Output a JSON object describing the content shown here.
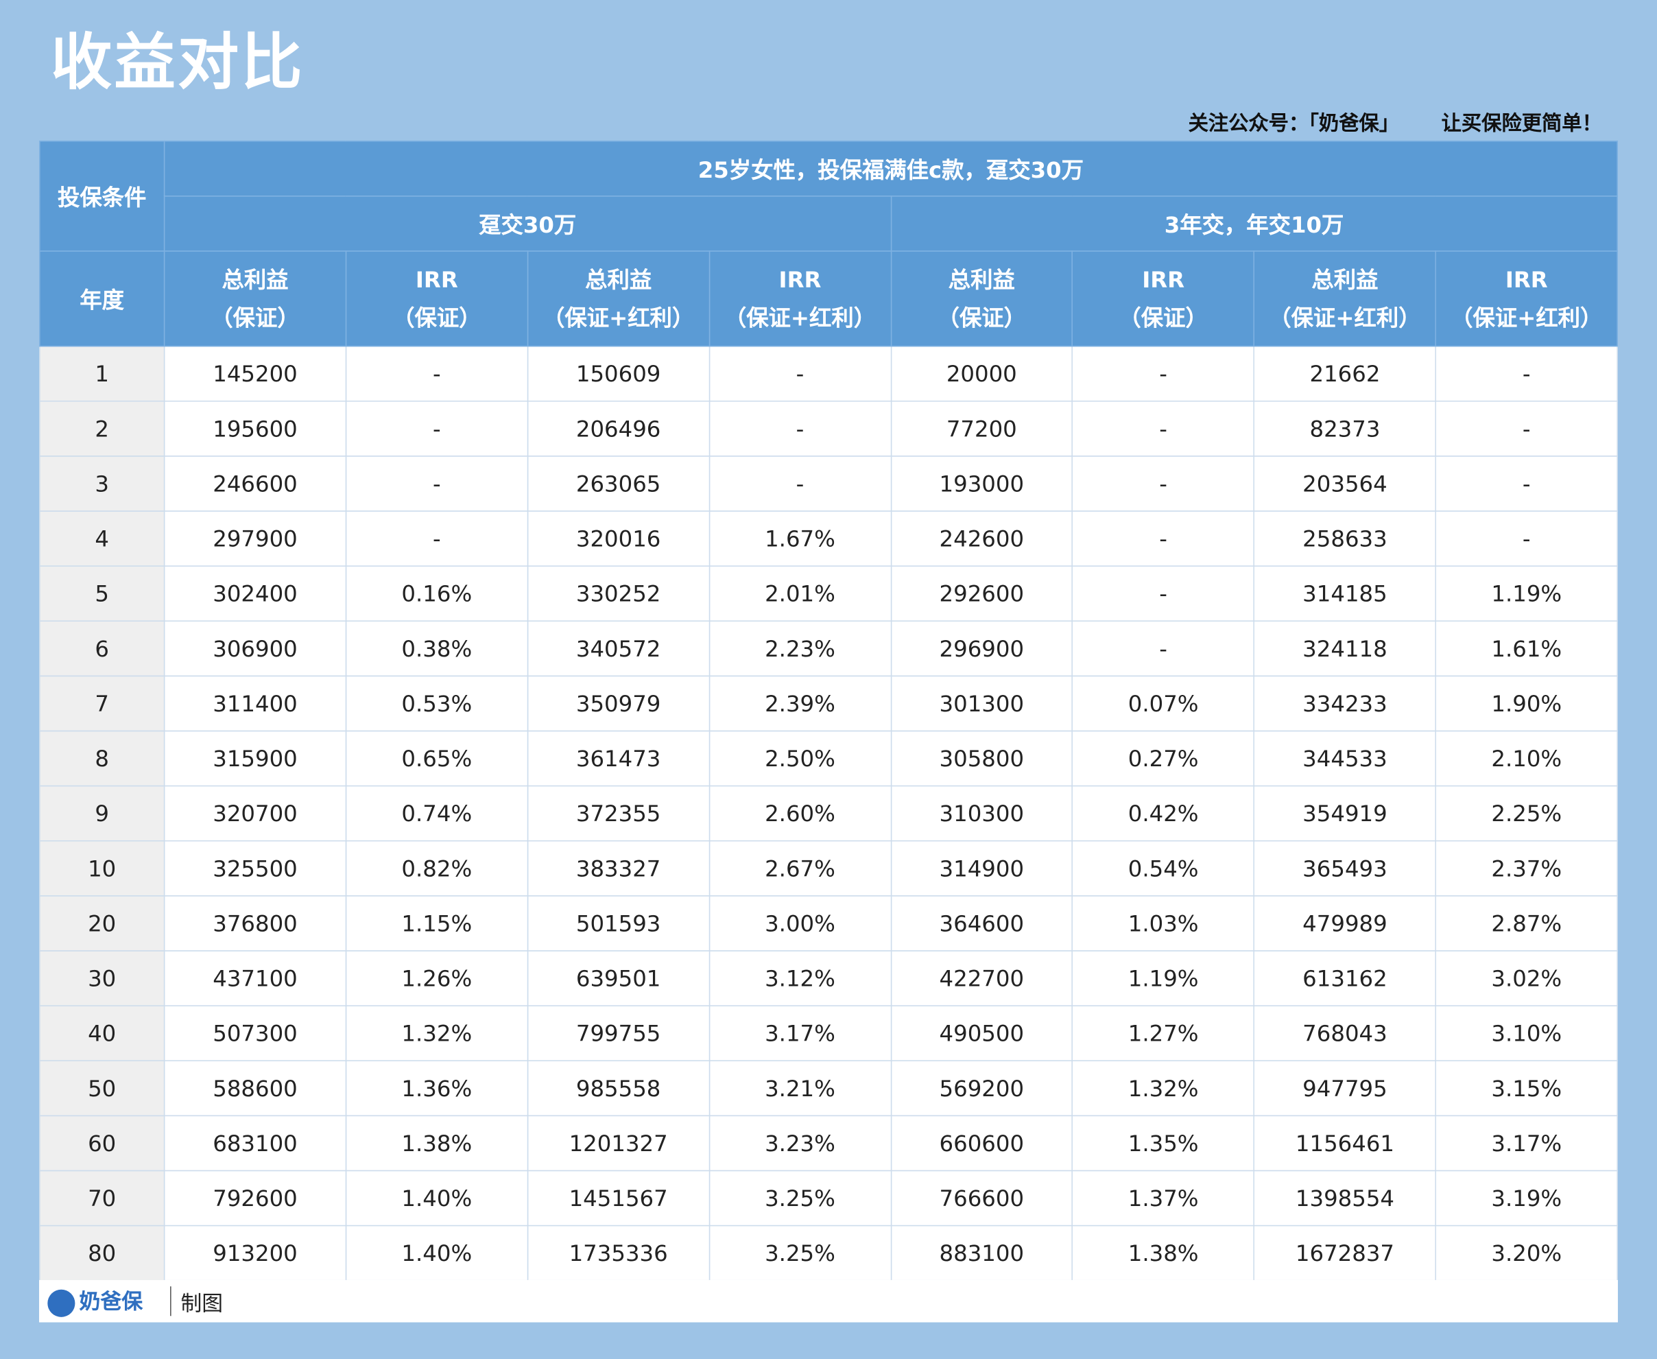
{
  "title": "收益对比",
  "subtitle": "关注公众号：「奶爸保」",
  "slogan": "让买保险更简单！",
  "table": {
    "corner": "投保条件",
    "main_header": "25岁女性，投保福满佳c款，趸交30万",
    "groups": [
      "趸交30万",
      "3年交，年交10万"
    ],
    "year_header": "年度",
    "columns": [
      [
        "总利益",
        "（保证）"
      ],
      [
        "IRR",
        "（保证）"
      ],
      [
        "总利益",
        "（保证+红利）"
      ],
      [
        "IRR",
        "（保证+红利）"
      ],
      [
        "总利益",
        "（保证）"
      ],
      [
        "IRR",
        "（保证）"
      ],
      [
        "总利益",
        "（保证+红利）"
      ],
      [
        "IRR",
        "（保证+红利）"
      ]
    ],
    "rows": [
      [
        "1",
        "145200",
        "-",
        "150609",
        "-",
        "20000",
        "-",
        "21662",
        "-"
      ],
      [
        "2",
        "195600",
        "-",
        "206496",
        "-",
        "77200",
        "-",
        "82373",
        "-"
      ],
      [
        "3",
        "246600",
        "-",
        "263065",
        "-",
        "193000",
        "-",
        "203564",
        "-"
      ],
      [
        "4",
        "297900",
        "-",
        "320016",
        "1.67%",
        "242600",
        "-",
        "258633",
        "-"
      ],
      [
        "5",
        "302400",
        "0.16%",
        "330252",
        "2.01%",
        "292600",
        "-",
        "314185",
        "1.19%"
      ],
      [
        "6",
        "306900",
        "0.38%",
        "340572",
        "2.23%",
        "296900",
        "-",
        "324118",
        "1.61%"
      ],
      [
        "7",
        "311400",
        "0.53%",
        "350979",
        "2.39%",
        "301300",
        "0.07%",
        "334233",
        "1.90%"
      ],
      [
        "8",
        "315900",
        "0.65%",
        "361473",
        "2.50%",
        "305800",
        "0.27%",
        "344533",
        "2.10%"
      ],
      [
        "9",
        "320700",
        "0.74%",
        "372355",
        "2.60%",
        "310300",
        "0.42%",
        "354919",
        "2.25%"
      ],
      [
        "10",
        "325500",
        "0.82%",
        "383327",
        "2.67%",
        "314900",
        "0.54%",
        "365493",
        "2.37%"
      ],
      [
        "20",
        "376800",
        "1.15%",
        "501593",
        "3.00%",
        "364600",
        "1.03%",
        "479989",
        "2.87%"
      ],
      [
        "30",
        "437100",
        "1.26%",
        "639501",
        "3.12%",
        "422700",
        "1.19%",
        "613162",
        "3.02%"
      ],
      [
        "40",
        "507300",
        "1.32%",
        "799755",
        "3.17%",
        "490500",
        "1.27%",
        "768043",
        "3.10%"
      ],
      [
        "50",
        "588600",
        "1.36%",
        "985558",
        "3.21%",
        "569200",
        "1.32%",
        "947795",
        "3.15%"
      ],
      [
        "60",
        "683100",
        "1.38%",
        "1201327",
        "3.23%",
        "660600",
        "1.35%",
        "1156461",
        "3.17%"
      ],
      [
        "70",
        "792600",
        "1.40%",
        "1451567",
        "3.25%",
        "766600",
        "1.37%",
        "1398554",
        "3.19%"
      ],
      [
        "80",
        "913200",
        "1.40%",
        "1735336",
        "3.25%",
        "883100",
        "1.38%",
        "1672837",
        "3.20%"
      ]
    ]
  },
  "footer": {
    "logo": "奶爸保",
    "note": "制图"
  }
}
